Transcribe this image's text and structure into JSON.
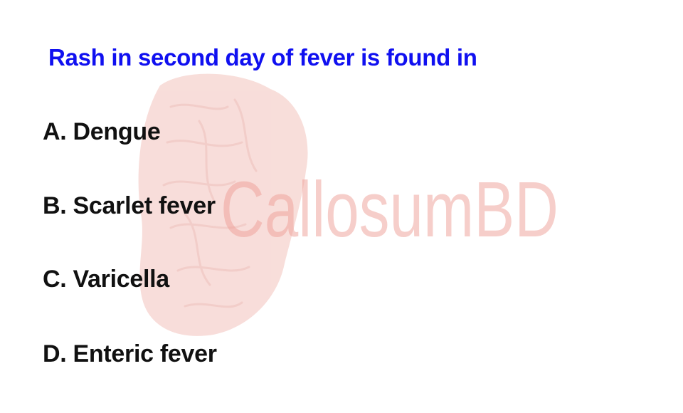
{
  "question": {
    "text": "Rash in second day of fever is found in"
  },
  "options": [
    {
      "letter": "A",
      "text": "A. Dengue"
    },
    {
      "letter": "B",
      "text": "B. Scarlet fever"
    },
    {
      "letter": "C",
      "text": "C. Varicella"
    },
    {
      "letter": "D",
      "text": "D. Enteric fever"
    }
  ],
  "watermark": {
    "text": "CallosumBD",
    "color": "#f0b4ae"
  },
  "colors": {
    "question": "#1010f0",
    "option": "#111111",
    "background": "#ffffff"
  }
}
